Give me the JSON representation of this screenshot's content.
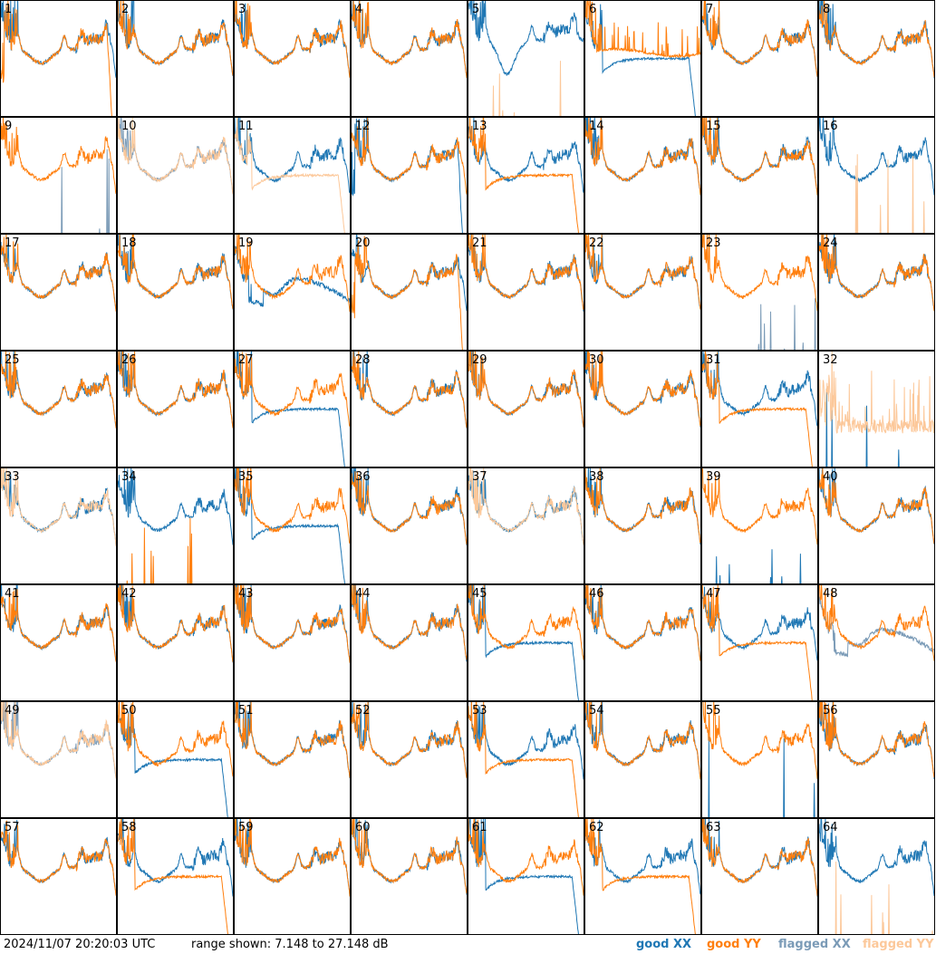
{
  "colors": {
    "good_xx": "#1f77b4",
    "good_yy": "#ff7f0e",
    "flagged_xx": "#7b9bb7",
    "flagged_yy": "#fcc89a"
  },
  "footer": {
    "timestamp": "2024/11/07 20:20:03 UTC",
    "range_text": "range shown: 7.148 to 27.148 dB"
  },
  "legend": [
    {
      "label": "good XX",
      "color": "#1f77b4"
    },
    {
      "label": "good YY",
      "color": "#ff7f0e"
    },
    {
      "label": "flagged XX",
      "color": "#7b9bb7"
    },
    {
      "label": "flagged YY",
      "color": "#fcc89a"
    }
  ],
  "chart_data": {
    "type": "line",
    "grid_rows": 8,
    "grid_cols": 8,
    "y_unit": "dB",
    "ylim": [
      7.148,
      27.148
    ],
    "panels": [
      {
        "id": "1",
        "xx": "typical",
        "yy": "typical_drop",
        "xx_flag": false,
        "yy_flag": false
      },
      {
        "id": "2",
        "xx": "typical",
        "yy": "typical",
        "xx_flag": false,
        "yy_flag": false
      },
      {
        "id": "3",
        "xx": "typical",
        "yy": "typical",
        "xx_flag": false,
        "yy_flag": false
      },
      {
        "id": "4",
        "xx": "typical",
        "yy": "typical",
        "xx_flag": false,
        "yy_flag": false
      },
      {
        "id": "5",
        "xx": "typical_high",
        "yy": "dead",
        "xx_flag": false,
        "yy_flag": true
      },
      {
        "id": "6",
        "xx": "low_drop",
        "yy": "plateau",
        "xx_flag": false,
        "yy_flag": false
      },
      {
        "id": "7",
        "xx": "typical",
        "yy": "typical",
        "xx_flag": false,
        "yy_flag": false
      },
      {
        "id": "8",
        "xx": "typical",
        "yy": "typical",
        "xx_flag": false,
        "yy_flag": false
      },
      {
        "id": "9",
        "xx": "dead",
        "yy": "typical",
        "xx_flag": true,
        "yy_flag": false
      },
      {
        "id": "10",
        "xx": "typical",
        "yy": "typical",
        "xx_flag": true,
        "yy_flag": true
      },
      {
        "id": "11",
        "xx": "typical",
        "yy": "low_drop",
        "xx_flag": false,
        "yy_flag": true
      },
      {
        "id": "12",
        "xx": "typical_drop",
        "yy": "typical",
        "xx_flag": false,
        "yy_flag": false
      },
      {
        "id": "13",
        "xx": "typical",
        "yy": "low_drop",
        "xx_flag": false,
        "yy_flag": false
      },
      {
        "id": "14",
        "xx": "typical",
        "yy": "typical",
        "xx_flag": false,
        "yy_flag": false
      },
      {
        "id": "15",
        "xx": "typical",
        "yy": "typical",
        "xx_flag": false,
        "yy_flag": false
      },
      {
        "id": "16",
        "xx": "typical",
        "yy": "dead",
        "xx_flag": false,
        "yy_flag": true
      },
      {
        "id": "17",
        "xx": "typical",
        "yy": "typical",
        "xx_flag": false,
        "yy_flag": false
      },
      {
        "id": "18",
        "xx": "typical",
        "yy": "typical",
        "xx_flag": false,
        "yy_flag": false
      },
      {
        "id": "19",
        "xx": "low",
        "yy": "typical",
        "xx_flag": false,
        "yy_flag": false
      },
      {
        "id": "20",
        "xx": "typical",
        "yy": "typical_drop",
        "xx_flag": false,
        "yy_flag": false
      },
      {
        "id": "21",
        "xx": "typical",
        "yy": "typical",
        "xx_flag": false,
        "yy_flag": false
      },
      {
        "id": "22",
        "xx": "typical",
        "yy": "typical",
        "xx_flag": false,
        "yy_flag": false
      },
      {
        "id": "23",
        "xx": "dead",
        "yy": "typical",
        "xx_flag": true,
        "yy_flag": false
      },
      {
        "id": "24",
        "xx": "typical",
        "yy": "typical",
        "xx_flag": false,
        "yy_flag": false
      },
      {
        "id": "25",
        "xx": "typical",
        "yy": "typical",
        "xx_flag": false,
        "yy_flag": false
      },
      {
        "id": "26",
        "xx": "typical",
        "yy": "typical",
        "xx_flag": false,
        "yy_flag": false
      },
      {
        "id": "27",
        "xx": "low_drop",
        "yy": "typical",
        "xx_flag": false,
        "yy_flag": false
      },
      {
        "id": "28",
        "xx": "typical",
        "yy": "typical",
        "xx_flag": false,
        "yy_flag": false
      },
      {
        "id": "29",
        "xx": "typical",
        "yy": "typical",
        "xx_flag": false,
        "yy_flag": false
      },
      {
        "id": "30",
        "xx": "typical",
        "yy": "typical",
        "xx_flag": false,
        "yy_flag": false
      },
      {
        "id": "31",
        "xx": "typical",
        "yy": "low_drop",
        "xx_flag": false,
        "yy_flag": false
      },
      {
        "id": "32",
        "xx": "dead",
        "yy": "noisy",
        "xx_flag": false,
        "yy_flag": true
      },
      {
        "id": "33",
        "xx": "typical",
        "yy": "typical",
        "xx_flag": false,
        "yy_flag": true
      },
      {
        "id": "34",
        "xx": "typical",
        "yy": "dead",
        "xx_flag": false,
        "yy_flag": false
      },
      {
        "id": "35",
        "xx": "low_drop",
        "yy": "typical",
        "xx_flag": false,
        "yy_flag": false
      },
      {
        "id": "36",
        "xx": "typical",
        "yy": "typical",
        "xx_flag": false,
        "yy_flag": false
      },
      {
        "id": "37",
        "xx": "typical",
        "yy": "typical",
        "xx_flag": false,
        "yy_flag": true
      },
      {
        "id": "38",
        "xx": "typical",
        "yy": "typical",
        "xx_flag": false,
        "yy_flag": false
      },
      {
        "id": "39",
        "xx": "dead",
        "yy": "typical",
        "xx_flag": false,
        "yy_flag": false
      },
      {
        "id": "40",
        "xx": "typical",
        "yy": "typical",
        "xx_flag": false,
        "yy_flag": false
      },
      {
        "id": "41",
        "xx": "typical",
        "yy": "typical",
        "xx_flag": false,
        "yy_flag": false
      },
      {
        "id": "42",
        "xx": "typical",
        "yy": "typical",
        "xx_flag": false,
        "yy_flag": false
      },
      {
        "id": "43",
        "xx": "typical",
        "yy": "typical",
        "xx_flag": false,
        "yy_flag": false
      },
      {
        "id": "44",
        "xx": "typical",
        "yy": "typical",
        "xx_flag": false,
        "yy_flag": false
      },
      {
        "id": "45",
        "xx": "low_drop",
        "yy": "typical",
        "xx_flag": false,
        "yy_flag": false
      },
      {
        "id": "46",
        "xx": "typical",
        "yy": "typical",
        "xx_flag": false,
        "yy_flag": false
      },
      {
        "id": "47",
        "xx": "typical",
        "yy": "low_drop",
        "xx_flag": false,
        "yy_flag": false
      },
      {
        "id": "48",
        "xx": "low",
        "yy": "typical",
        "xx_flag": true,
        "yy_flag": false
      },
      {
        "id": "49",
        "xx": "typical",
        "yy": "typical",
        "xx_flag": true,
        "yy_flag": true
      },
      {
        "id": "50",
        "xx": "low_drop",
        "yy": "typical",
        "xx_flag": false,
        "yy_flag": false
      },
      {
        "id": "51",
        "xx": "typical",
        "yy": "typical",
        "xx_flag": false,
        "yy_flag": false
      },
      {
        "id": "52",
        "xx": "typical",
        "yy": "typical",
        "xx_flag": false,
        "yy_flag": false
      },
      {
        "id": "53",
        "xx": "typical",
        "yy": "low_drop",
        "xx_flag": false,
        "yy_flag": false
      },
      {
        "id": "54",
        "xx": "typical",
        "yy": "typical",
        "xx_flag": false,
        "yy_flag": false
      },
      {
        "id": "55",
        "xx": "dead",
        "yy": "typical",
        "xx_flag": false,
        "yy_flag": false
      },
      {
        "id": "56",
        "xx": "typical",
        "yy": "typical",
        "xx_flag": false,
        "yy_flag": false
      },
      {
        "id": "57",
        "xx": "typical",
        "yy": "typical",
        "xx_flag": false,
        "yy_flag": false
      },
      {
        "id": "58",
        "xx": "typical",
        "yy": "low_drop",
        "xx_flag": false,
        "yy_flag": false
      },
      {
        "id": "59",
        "xx": "typical",
        "yy": "typical",
        "xx_flag": false,
        "yy_flag": false
      },
      {
        "id": "60",
        "xx": "typical",
        "yy": "typical",
        "xx_flag": false,
        "yy_flag": false
      },
      {
        "id": "61",
        "xx": "low_drop",
        "yy": "typical",
        "xx_flag": false,
        "yy_flag": false
      },
      {
        "id": "62",
        "xx": "typical",
        "yy": "low_drop",
        "xx_flag": false,
        "yy_flag": false
      },
      {
        "id": "63",
        "xx": "typical",
        "yy": "typical",
        "xx_flag": false,
        "yy_flag": false
      },
      {
        "id": "64",
        "xx": "typical",
        "yy": "dead",
        "xx_flag": false,
        "yy_flag": true
      }
    ]
  }
}
